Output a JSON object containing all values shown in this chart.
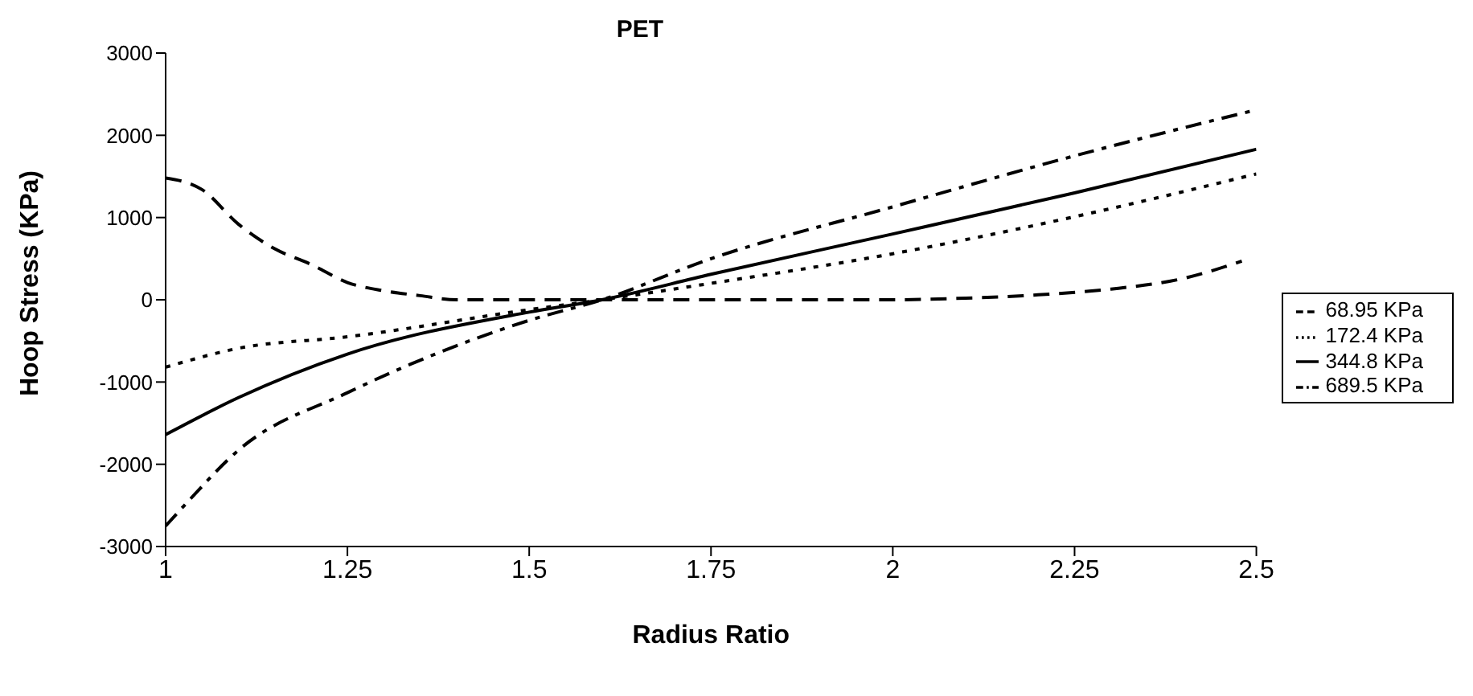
{
  "chart_data": {
    "type": "line",
    "title": "PET",
    "xlabel": "Radius Ratio",
    "ylabel": "Hoop Stress (KPa)",
    "xlim": [
      1,
      2.5
    ],
    "xticks": [
      1,
      1.25,
      1.5,
      1.75,
      2,
      2.25,
      2.5
    ],
    "ylim": [
      -3000,
      3000
    ],
    "yticks": [
      -3000,
      -2000,
      -1000,
      0,
      1000,
      2000,
      3000
    ],
    "grid": false,
    "legend": "right",
    "marker": "none",
    "series": [
      {
        "name": "68.95 KPa",
        "color": "#000000",
        "line_style": "dashed",
        "x": [
          1,
          1.05,
          1.1,
          1.15,
          1.2,
          1.25,
          1.3,
          1.35,
          1.4,
          1.5,
          1.75,
          2,
          2.1,
          2.2,
          2.3,
          2.4,
          2.48
        ],
        "values": [
          1480,
          1340,
          920,
          620,
          430,
          210,
          110,
          50,
          0,
          0,
          0,
          0,
          20,
          60,
          130,
          260,
          470
        ]
      },
      {
        "name": "172.4 KPa",
        "color": "#000000",
        "line_style": "dotted",
        "x": [
          1,
          1.1,
          1.25,
          1.5,
          1.6,
          1.75,
          2,
          2.25,
          2.5
        ],
        "values": [
          -820,
          -590,
          -450,
          -120,
          0,
          200,
          560,
          1010,
          1530
        ]
      },
      {
        "name": "344.8 KPa",
        "color": "#000000",
        "line_style": "solid",
        "x": [
          1,
          1.1,
          1.25,
          1.5,
          1.6,
          1.75,
          2,
          2.25,
          2.5
        ],
        "values": [
          -1640,
          -1190,
          -660,
          -150,
          0,
          310,
          800,
          1300,
          1830
        ]
      },
      {
        "name": "689.5 KPa",
        "color": "#000000",
        "line_style": "dashdot",
        "x": [
          1,
          1.03,
          1.1,
          1.25,
          1.5,
          1.6,
          1.75,
          2,
          2.25,
          2.5
        ],
        "values": [
          -2750,
          -2460,
          -1830,
          -1130,
          -250,
          0,
          500,
          1130,
          1750,
          2310
        ]
      }
    ]
  }
}
